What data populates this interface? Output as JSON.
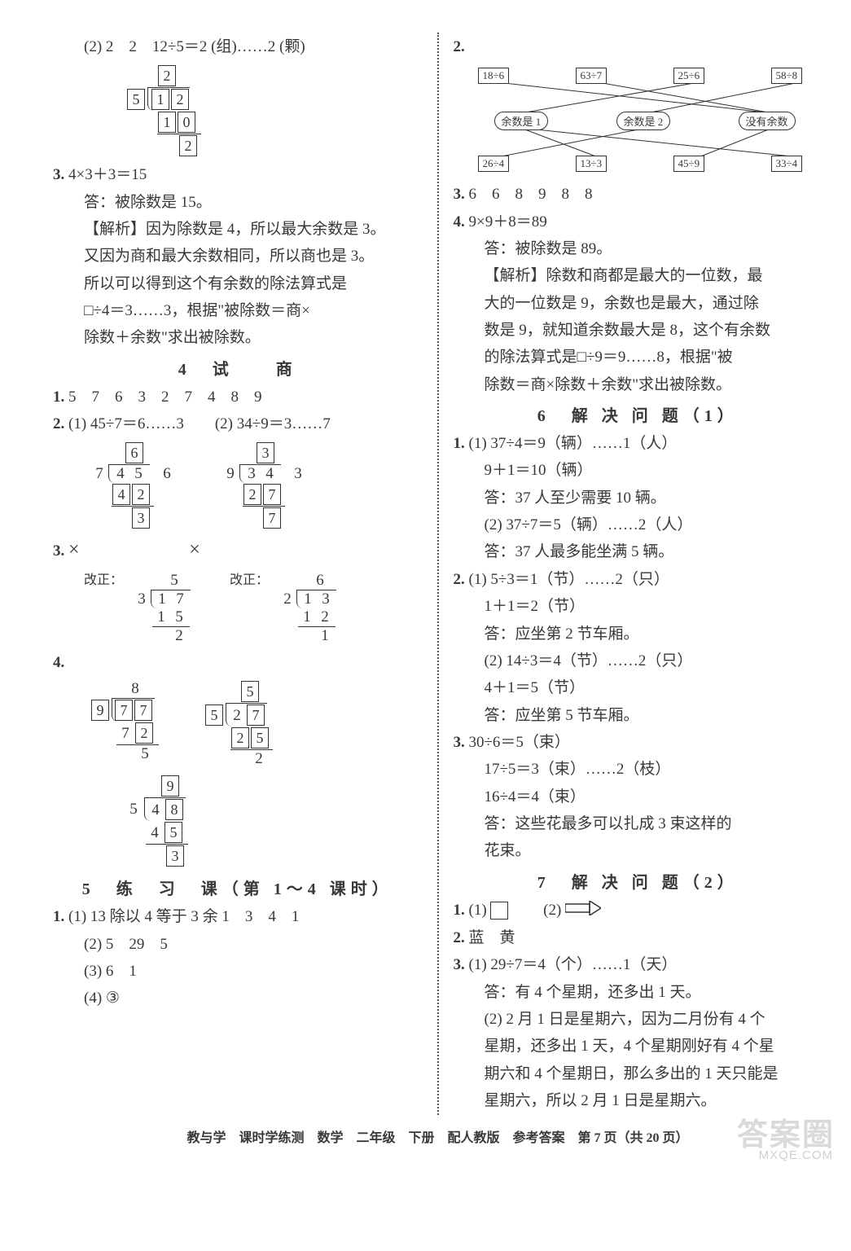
{
  "left": {
    "l1": "(2) 2　2　12÷5＝2 (组)……2 (颗)",
    "ld1": {
      "divisor": "5",
      "d1": "1",
      "d2": "2",
      "q": "2",
      "s1": "1",
      "s2": "0",
      "r": "2"
    },
    "l3_a": "4×3＋3＝15",
    "l3_b": "答：被除数是 15。",
    "l3_c": "【解析】因为除数是 4，所以最大余数是 3。",
    "l3_d": "又因为商和最大余数相同，所以商也是 3。",
    "l3_e": "所以可以得到这个有余数的除法算式是",
    "l3_f": "□÷4＝3……3，根据\"被除数＝商×",
    "l3_g": "除数＋余数\"求出被除数。",
    "sec4": "4　试　　商",
    "s4_1": "5　7　6　3　2　7　4　8　9",
    "s4_2a": "(1) 45÷7＝6……3",
    "s4_2b": "(2) 34÷9＝3……7",
    "ld2a": {
      "divisor": "7",
      "d1": "4",
      "d2": "5",
      "q": "6",
      "s1": "4",
      "s2": "2",
      "r": "3",
      "side": "6"
    },
    "ld2b": {
      "divisor": "9",
      "d1": "3",
      "d2": "4",
      "q": "3",
      "s1": "2",
      "s2": "7",
      "r": "7",
      "side": "3"
    },
    "s4_3_x": "×",
    "s4_3_fix": "改正：",
    "ld3a": {
      "divisor": "3",
      "d1": "1",
      "d2": "7",
      "q": "5",
      "s1": "1",
      "s2": "5",
      "r": "2"
    },
    "ld3b": {
      "divisor": "2",
      "d1": "1",
      "d2": "3",
      "q": "6",
      "s1": "1",
      "s2": "2",
      "r": "1"
    },
    "ld4a": {
      "divisor": "9",
      "d1": "7",
      "d2": "7",
      "q": "8",
      "s1": "7",
      "s2": "2",
      "r": "5"
    },
    "ld4b": {
      "divisor": "5",
      "d1": "2",
      "d2": "7",
      "q": "5",
      "s1": "2",
      "s2": "5",
      "r": "2"
    },
    "ld4c": {
      "divisor": "5",
      "d1": "4",
      "d2": "8",
      "q": "9",
      "s1": "4",
      "s2": "5",
      "r": "3"
    },
    "sec5": "5　练　习　课（第 1～4 课时）",
    "s5_1a": "(1) 13 除以 4 等于 3 余 1　3　4　1",
    "s5_1b": "(2) 5　29　5",
    "s5_1c": "(3) 6　1",
    "s5_1d": "(4) ③"
  },
  "right": {
    "match": {
      "top": [
        "18÷6",
        "63÷7",
        "25÷6",
        "58÷8"
      ],
      "mid": [
        "余数是 1",
        "余数是 2",
        "没有余数"
      ],
      "bot": [
        "26÷4",
        "13÷3",
        "45÷9",
        "33÷4"
      ],
      "top_x": [
        30,
        150,
        270,
        390
      ],
      "mid_x": [
        50,
        200,
        350
      ],
      "bot_x": [
        30,
        150,
        270,
        390
      ],
      "edges_top": [
        [
          0,
          2
        ],
        [
          1,
          2
        ],
        [
          2,
          0
        ],
        [
          3,
          1
        ]
      ],
      "edges_bot": [
        [
          0,
          1
        ],
        [
          1,
          0
        ],
        [
          2,
          2
        ],
        [
          3,
          0
        ]
      ]
    },
    "r3": "6　6　8　9　8　8",
    "r4a": "9×9＋8＝89",
    "r4b": "答：被除数是 89。",
    "r4c": "【解析】除数和商都是最大的一位数，最",
    "r4d": "大的一位数是 9，余数也是最大，通过除",
    "r4e": "数是 9，就知道余数最大是 8，这个有余数",
    "r4f": "的除法算式是□÷9＝9……8，根据\"被",
    "r4g": "除数＝商×除数＋余数\"求出被除数。",
    "sec6": "6　解 决 问 题（1）",
    "s6_1a": "(1) 37÷4＝9（辆）……1（人）",
    "s6_1b": "9＋1＝10（辆）",
    "s6_1c": "答：37 人至少需要 10 辆。",
    "s6_1d": "(2) 37÷7＝5（辆）……2（人）",
    "s6_1e": "答：37 人最多能坐满 5 辆。",
    "s6_2a": "(1) 5÷3＝1（节）……2（只）",
    "s6_2b": "1＋1＝2（节）",
    "s6_2c": "答：应坐第 2 节车厢。",
    "s6_2d": "(2) 14÷3＝4（节）……2（只）",
    "s6_2e": "4＋1＝5（节）",
    "s6_2f": "答：应坐第 5 节车厢。",
    "s6_3a": "30÷6＝5（束）",
    "s6_3b": "17÷5＝3（束）……2（枝）",
    "s6_3c": "16÷4＝4（束）",
    "s6_3d": "答：这些花最多可以扎成 3 束这样的",
    "s6_3e": "花束。",
    "sec7": "7　解 决 问 题（2）",
    "s7_1a": "(1)",
    "s7_1b": "(2)",
    "s7_2": "蓝　黄",
    "s7_3a": "(1) 29÷7＝4（个）……1（天）",
    "s7_3b": "答：有 4 个星期，还多出 1 天。",
    "s7_3c": "(2) 2 月 1 日是星期六，因为二月份有 4 个",
    "s7_3d": "星期，还多出 1 天，4 个星期刚好有 4 个星",
    "s7_3e": "期六和 4 个星期日，那么多出的 1 天只能是",
    "s7_3f": "星期六，所以 2 月 1 日是星期六。"
  },
  "footer": "教与学　课时学练测　数学　二年级　下册　配人教版　参考答案　第 7 页（共 20 页）",
  "watermark": "答案圈",
  "watermark_sub": "MXQE.COM",
  "labels": {
    "n1": "1.",
    "n2": "2.",
    "n3": "3.",
    "n4": "4."
  }
}
